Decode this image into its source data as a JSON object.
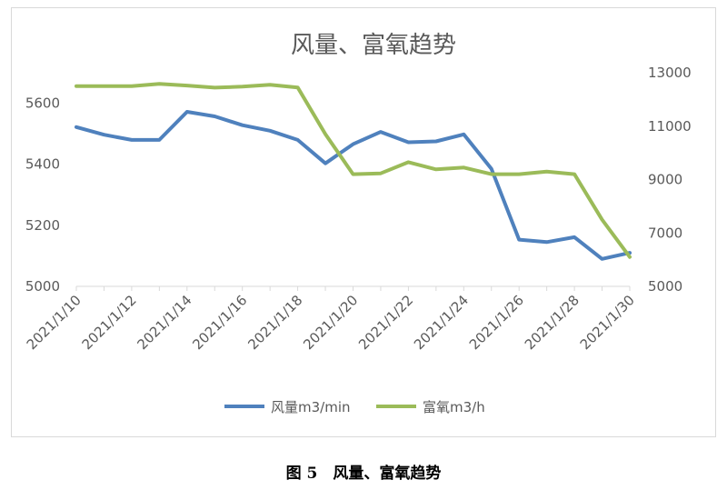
{
  "caption": "图 5　风量、富氧趋势",
  "chart_data": {
    "type": "line",
    "title": "风量、富氧趋势",
    "x": [
      "2021/1/10",
      "2021/1/11",
      "2021/1/12",
      "2021/1/13",
      "2021/1/14",
      "2021/1/15",
      "2021/1/16",
      "2021/1/17",
      "2021/1/18",
      "2021/1/19",
      "2021/1/20",
      "2021/1/21",
      "2021/1/22",
      "2021/1/23",
      "2021/1/24",
      "2021/1/25",
      "2021/1/26",
      "2021/1/27",
      "2021/1/28",
      "2021/1/29",
      "2021/1/30"
    ],
    "x_tick_labels": [
      "2021/1/10",
      "2021/1/12",
      "2021/1/14",
      "2021/1/16",
      "2021/1/18",
      "2021/1/20",
      "2021/1/22",
      "2021/1/24",
      "2021/1/26",
      "2021/1/28",
      "2021/1/30"
    ],
    "y_left": {
      "ylim": [
        5000,
        5700
      ],
      "ticks": [
        5000,
        5200,
        5400,
        5600
      ]
    },
    "y_right": {
      "ylim": [
        5000,
        13000
      ],
      "ticks": [
        5000,
        7000,
        9000,
        11000,
        13000
      ]
    },
    "legend_position": "bottom",
    "grid": false,
    "series": [
      {
        "name": "风量m3/min",
        "axis": "left",
        "color": "#4f81bd",
        "values": [
          5522,
          5497,
          5480,
          5480,
          5572,
          5557,
          5528,
          5510,
          5480,
          5403,
          5466,
          5506,
          5472,
          5475,
          5498,
          5385,
          5153,
          5145,
          5161,
          5090,
          5110
        ]
      },
      {
        "name": "富氧m3/h",
        "axis": "right",
        "color": "#9bbb59",
        "values": [
          12500,
          12500,
          12500,
          12580,
          12520,
          12440,
          12480,
          12550,
          12450,
          10700,
          9200,
          9230,
          9650,
          9380,
          9450,
          9200,
          9200,
          9300,
          9200,
          7500,
          6100
        ]
      }
    ]
  }
}
